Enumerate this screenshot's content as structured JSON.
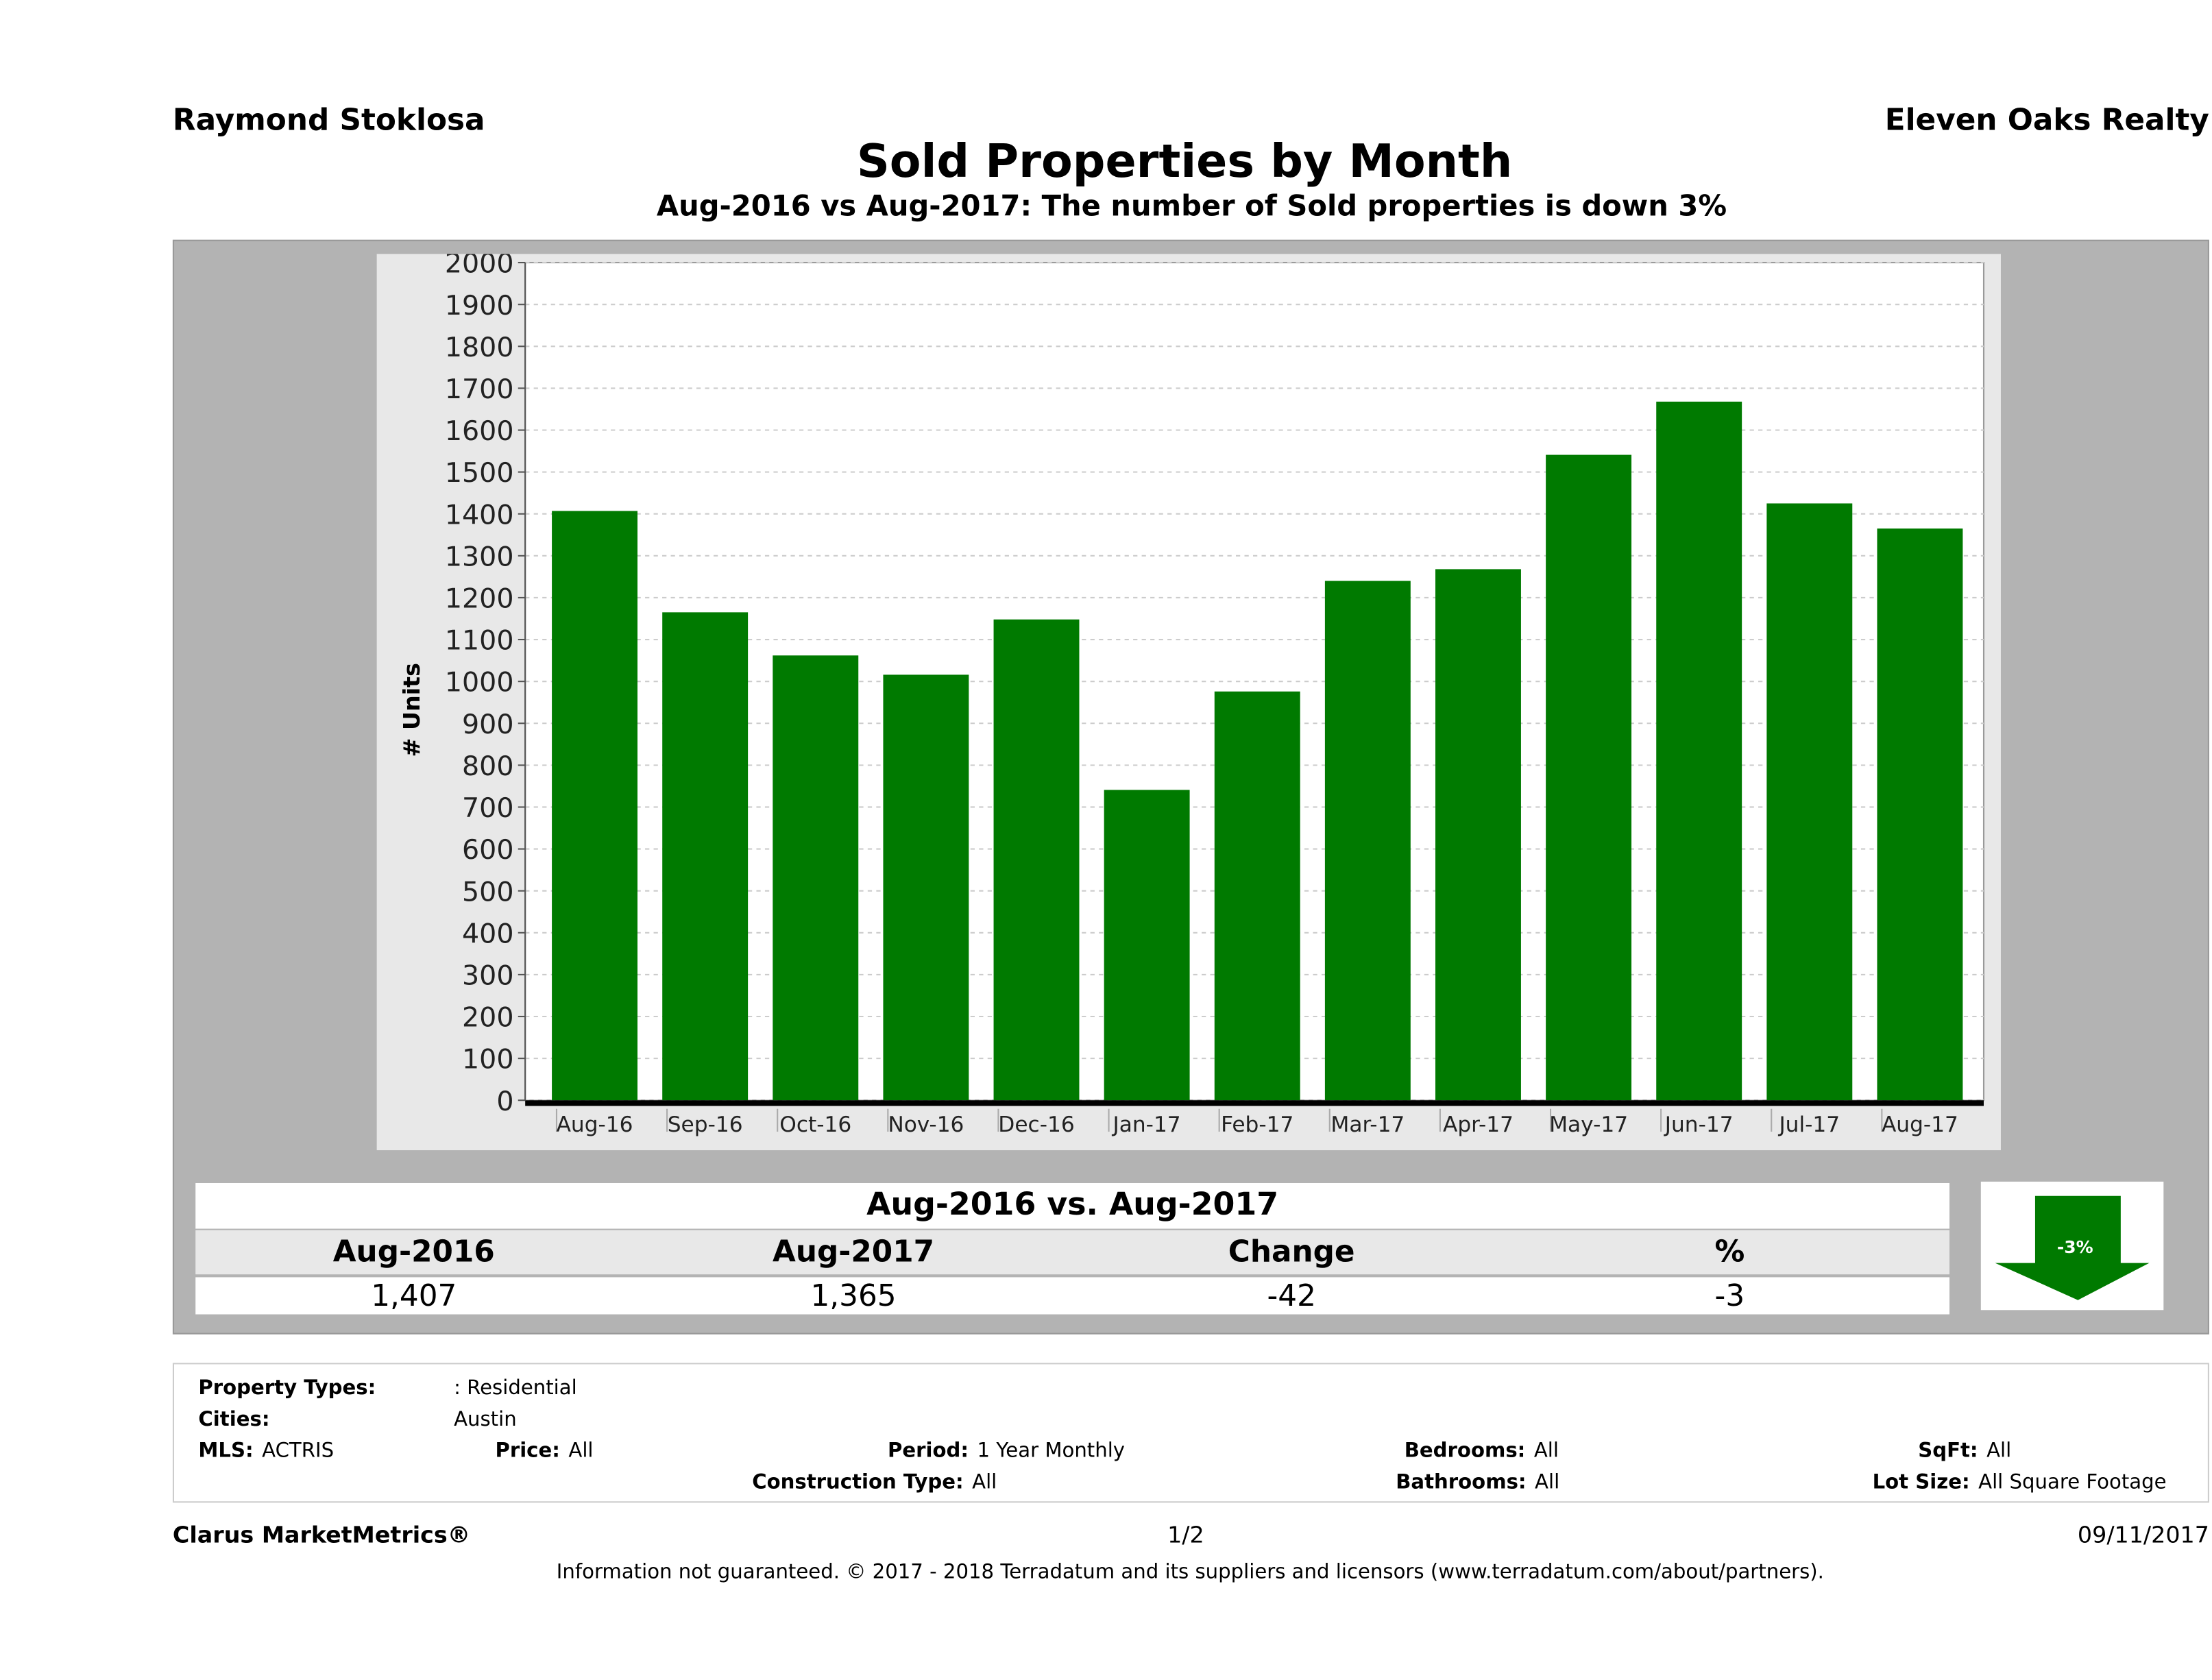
{
  "header": {
    "agent": "Raymond Stoklosa",
    "brokerage": "Eleven Oaks Realty",
    "title": "Sold Properties by Month",
    "subtitle": "Aug-2016 vs Aug-2017: The number of Sold  properties is down 3%"
  },
  "chart_data": {
    "type": "bar",
    "title": "",
    "xlabel": "",
    "ylabel": "# Units",
    "ylim": [
      0,
      2000
    ],
    "yticks": [
      0,
      100,
      200,
      300,
      400,
      500,
      600,
      700,
      800,
      900,
      1000,
      1100,
      1200,
      1300,
      1400,
      1500,
      1600,
      1700,
      1800,
      1900,
      2000
    ],
    "grid": true,
    "bar_color": "#007a00",
    "categories": [
      "Aug-16",
      "Sep-16",
      "Oct-16",
      "Nov-16",
      "Dec-16",
      "Jan-17",
      "Feb-17",
      "Mar-17",
      "Apr-17",
      "May-17",
      "Jun-17",
      "Jul-17",
      "Aug-17"
    ],
    "values": [
      1407,
      1165,
      1062,
      1016,
      1148,
      741,
      976,
      1240,
      1268,
      1541,
      1668,
      1425,
      1365
    ]
  },
  "summary": {
    "title": "Aug-2016 vs. Aug-2017",
    "headers": [
      "Aug-2016",
      "Aug-2017",
      "Change",
      "%"
    ],
    "values": [
      "1,407",
      "1,365",
      "-42",
      "-3"
    ],
    "badge": "-3%",
    "arrow": "down-arrow",
    "arrow_color": "#007a00"
  },
  "filters": {
    "property_types_label": "Property Types:",
    "property_types": ": Residential",
    "cities_label": "Cities:",
    "cities": "Austin",
    "mls_label": "MLS:",
    "mls": "ACTRIS",
    "price_label": "Price:",
    "price": "All",
    "period_label": "Period:",
    "period": "1 Year Monthly",
    "bedrooms_label": "Bedrooms:",
    "bedrooms": "All",
    "sqft_label": "SqFt:",
    "sqft": "All",
    "construction_label": "Construction Type:",
    "construction": "All",
    "bathrooms_label": "Bathrooms:",
    "bathrooms": "All",
    "lot_label": "Lot Size:",
    "lot": "All Square Footage"
  },
  "footer": {
    "brand": "Clarus MarketMetrics®",
    "page": "1/2",
    "date": "09/11/2017",
    "disclaimer": "Information not guaranteed. © 2017 - 2018 Terradatum and its suppliers and licensors (www.terradatum.com/about/partners)."
  }
}
